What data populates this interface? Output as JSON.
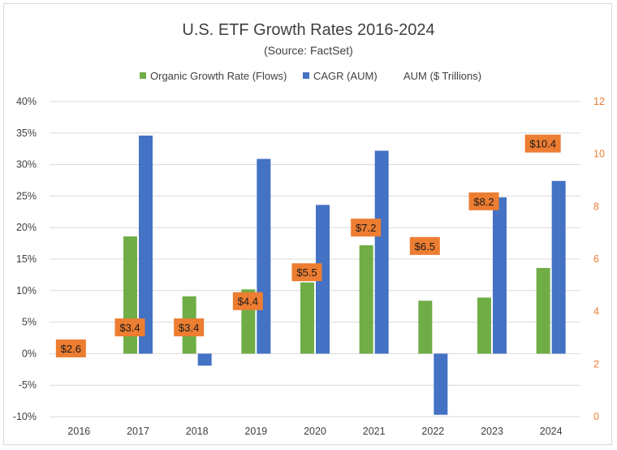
{
  "chart_data": {
    "type": "bar",
    "title": "U.S. ETF Growth Rates 2016-2024",
    "subtitle": "(Source: FactSet)",
    "categories": [
      "2016",
      "2017",
      "2018",
      "2019",
      "2020",
      "2021",
      "2022",
      "2023",
      "2024"
    ],
    "series": [
      {
        "name": "Organic Growth Rate (Flows)",
        "axis": "left",
        "color": "#70ad47",
        "values": [
          null,
          18.6,
          9.1,
          10.2,
          11.3,
          17.2,
          8.4,
          8.9,
          13.6
        ]
      },
      {
        "name": "CAGR (AUM)",
        "axis": "left",
        "color": "#4472c4",
        "values": [
          null,
          34.6,
          -1.9,
          30.9,
          23.6,
          32.2,
          -9.7,
          24.8,
          27.4
        ]
      },
      {
        "name": "AUM ($ Trillions)",
        "axis": "right",
        "color": "#ed7d31",
        "values": [
          2.6,
          3.4,
          3.4,
          4.4,
          5.5,
          7.2,
          6.5,
          8.2,
          10.4
        ],
        "labels": [
          "$2.6",
          "$3.4",
          "$3.4",
          "$4.4",
          "$5.5",
          "$7.2",
          "$6.5",
          "$8.2",
          "$10.4"
        ]
      }
    ],
    "left_axis": {
      "ylim": [
        -10,
        40
      ],
      "ticks": [
        40,
        35,
        30,
        25,
        20,
        15,
        10,
        5,
        0,
        -5,
        -10
      ],
      "tick_labels": [
        "40%",
        "35%",
        "30%",
        "25%",
        "20%",
        "15%",
        "10%",
        "5%",
        "0%",
        "-5%",
        "-10%"
      ]
    },
    "right_axis": {
      "ylim": [
        0,
        12
      ],
      "ticks": [
        12,
        10,
        8,
        6,
        4,
        2,
        0
      ],
      "tick_labels": [
        "12",
        "10",
        "8",
        "6",
        "4",
        "2",
        "0"
      ],
      "color": "#ed7d31"
    },
    "grid": true,
    "legend": "top-center",
    "xlabel": "",
    "ylabel": ""
  }
}
